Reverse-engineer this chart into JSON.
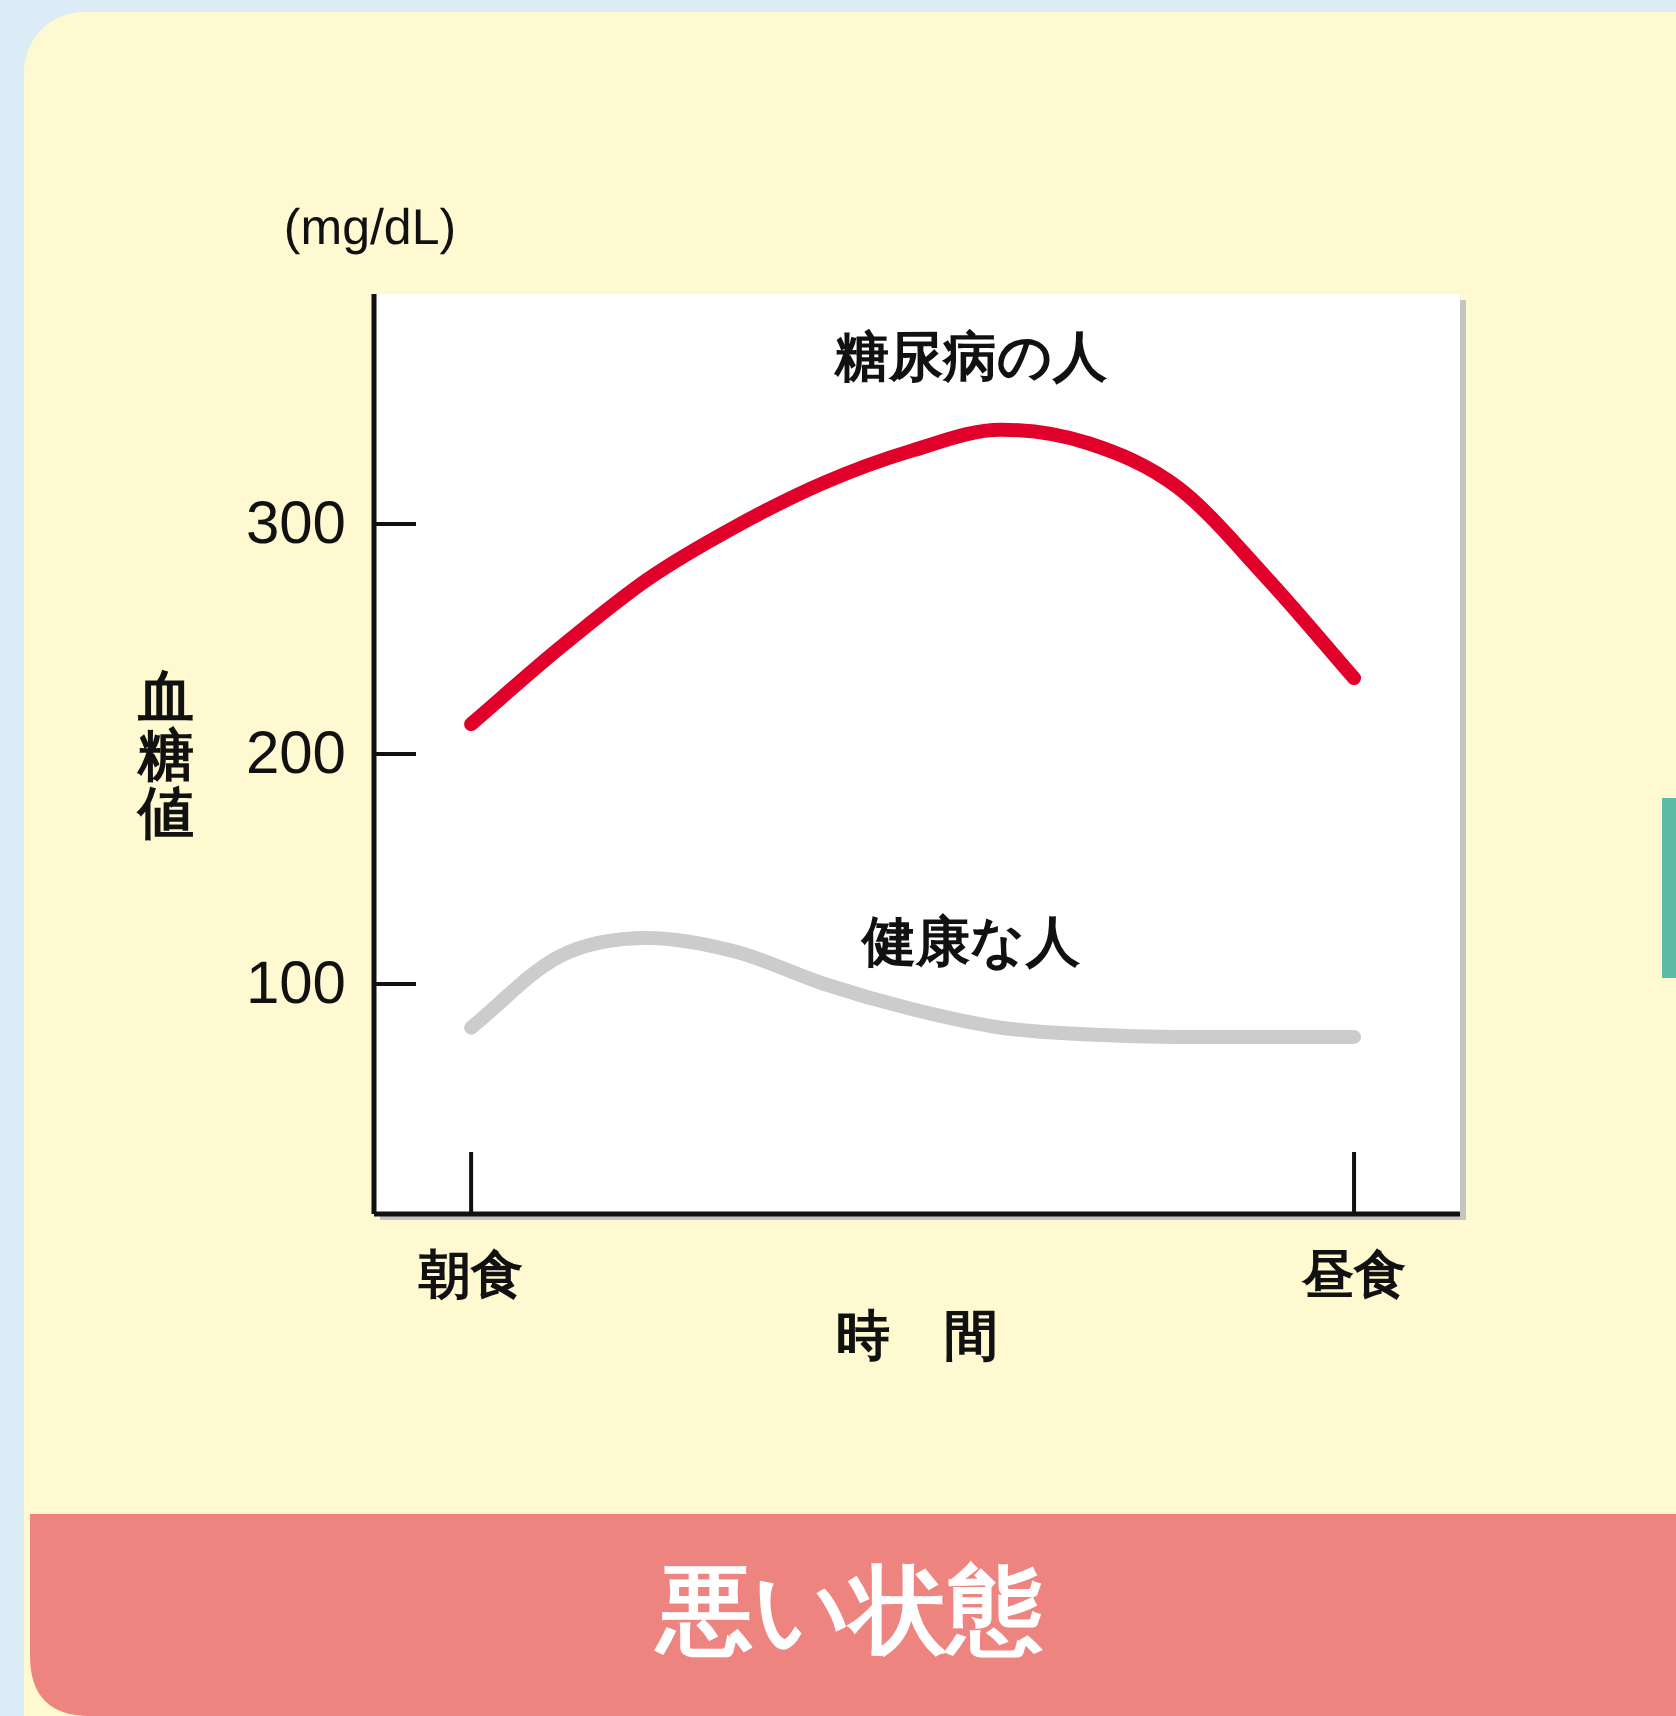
{
  "chart_data": {
    "type": "line",
    "title": "悪い状態",
    "xlabel": "時　間",
    "ylabel": "血糖値",
    "annotations": [
      "(mg/dL)"
    ],
    "categories": [
      "朝食",
      null,
      null,
      null,
      null,
      null,
      null,
      null,
      null,
      null,
      "昼食"
    ],
    "ylim": [
      0,
      400
    ],
    "yticks": [
      100,
      200,
      300
    ],
    "series": [
      {
        "name": "糖尿病の人",
        "color": "#e0002a",
        "values": [
          213,
          246,
          276,
          299,
          318,
          332,
          341,
          335,
          316,
          277,
          233
        ]
      },
      {
        "name": "健康な人",
        "color": "#cccccc",
        "values": [
          81,
          112,
          120,
          114,
          100,
          89,
          81,
          78,
          77,
          77,
          77
        ]
      }
    ]
  }
}
